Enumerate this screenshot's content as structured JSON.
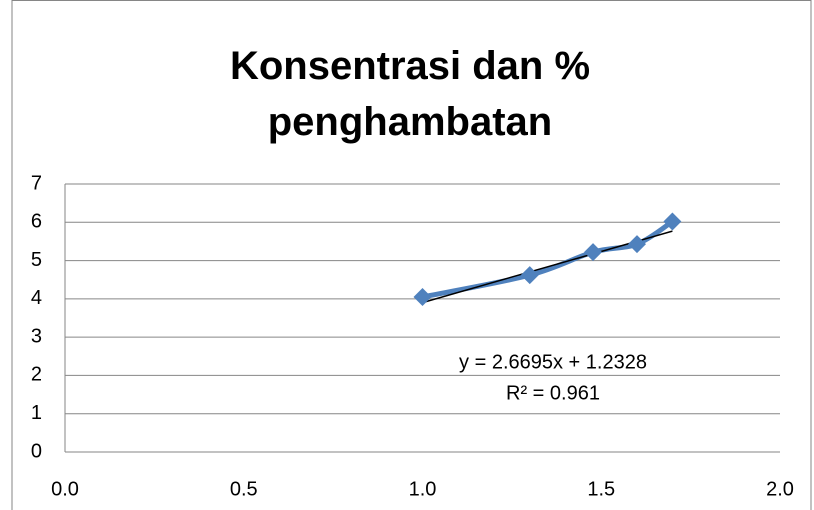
{
  "chart_data": {
    "type": "scatter",
    "title": "Konsentrasi dan % penghambatan",
    "series": [
      {
        "color": "#4f81bd",
        "x": [
          1.0,
          1.3,
          1.477,
          1.6,
          1.699
        ],
        "values": [
          4.05,
          4.62,
          5.22,
          5.43,
          6.02
        ]
      }
    ],
    "trendline": {
      "slope": 2.6695,
      "intercept": 1.2328,
      "color": "#000000",
      "equation": "y = 2.6695x + 1.2328",
      "r2": "R² = 0.961"
    },
    "xlim": [
      0,
      2
    ],
    "xticks": [
      {
        "value": 0,
        "label": "0.0"
      },
      {
        "value": 0.5,
        "label": "0.5"
      },
      {
        "value": 1,
        "label": "1.0"
      },
      {
        "value": 1.5,
        "label": "1.5"
      },
      {
        "value": 2,
        "label": "2.0"
      }
    ],
    "ylim": [
      0,
      7
    ],
    "yticks": [
      0,
      1,
      2,
      3,
      4,
      5,
      6,
      7
    ],
    "grid": true
  }
}
